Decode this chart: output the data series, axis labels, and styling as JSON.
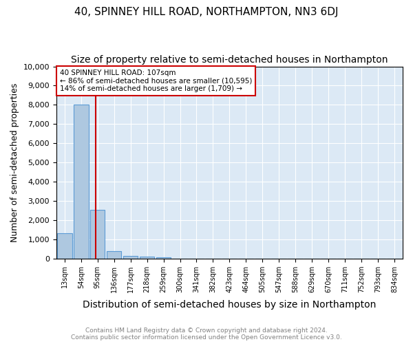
{
  "title": "40, SPINNEY HILL ROAD, NORTHAMPTON, NN3 6DJ",
  "subtitle": "Size of property relative to semi-detached houses in Northampton",
  "xlabel": "Distribution of semi-detached houses by size in Northampton",
  "ylabel": "Number of semi-detached properties",
  "categories": [
    "13sqm",
    "54sqm",
    "95sqm",
    "136sqm",
    "177sqm",
    "218sqm",
    "259sqm",
    "300sqm",
    "341sqm",
    "382sqm",
    "423sqm",
    "464sqm",
    "505sqm",
    "547sqm",
    "588sqm",
    "629sqm",
    "670sqm",
    "711sqm",
    "752sqm",
    "793sqm",
    "834sqm"
  ],
  "values": [
    1320,
    8000,
    2520,
    390,
    130,
    100,
    70,
    0,
    0,
    0,
    0,
    0,
    0,
    0,
    0,
    0,
    0,
    0,
    0,
    0,
    0
  ],
  "bar_color": "#aec8e0",
  "bar_edge_color": "#5b9bd5",
  "vline_x_index": 2,
  "vline_color": "#cc0000",
  "annotation_text": "40 SPINNEY HILL ROAD: 107sqm\n← 86% of semi-detached houses are smaller (10,595)\n14% of semi-detached houses are larger (1,709) →",
  "annotation_box_color": "#cc0000",
  "ylim": [
    0,
    10000
  ],
  "yticks": [
    0,
    1000,
    2000,
    3000,
    4000,
    5000,
    6000,
    7000,
    8000,
    9000,
    10000
  ],
  "background_color": "#dce9f5",
  "footer_line1": "Contains HM Land Registry data © Crown copyright and database right 2024.",
  "footer_line2": "Contains public sector information licensed under the Open Government Licence v3.0.",
  "title_fontsize": 11,
  "subtitle_fontsize": 10,
  "xlabel_fontsize": 10,
  "ylabel_fontsize": 9
}
